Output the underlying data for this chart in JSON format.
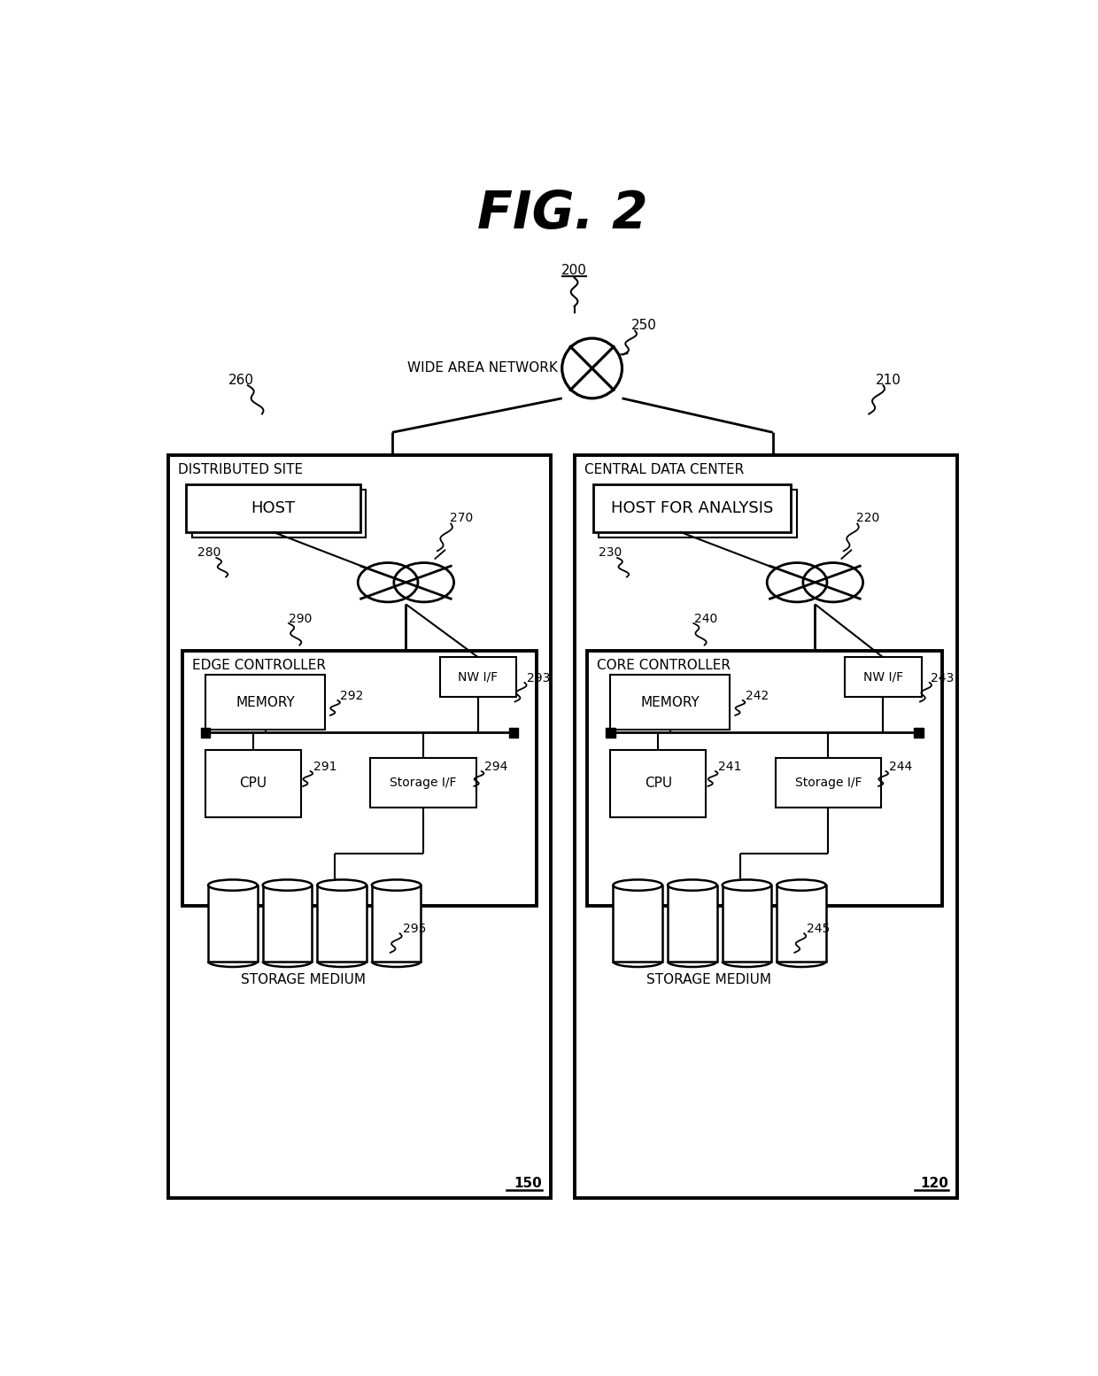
{
  "title": "FIG. 2",
  "bg_color": "#ffffff",
  "line_color": "#000000",
  "fig_width": 12.4,
  "fig_height": 15.54,
  "labels": {
    "fig_title": "FIG. 2",
    "ref_200": "200",
    "ref_250": "250",
    "ref_260": "260",
    "ref_210": "210",
    "ref_270": "270",
    "ref_220": "220",
    "ref_280": "280",
    "ref_290": "290",
    "ref_240": "240",
    "ref_230": "230",
    "ref_292": "292",
    "ref_293": "293",
    "ref_291": "291",
    "ref_294": "294",
    "ref_242": "242",
    "ref_243": "243",
    "ref_241": "241",
    "ref_244": "244",
    "ref_295": "295",
    "ref_245": "245",
    "ref_150": "150",
    "ref_120": "120",
    "wan_label": "WIDE AREA NETWORK",
    "dist_site": "DISTRIBUTED SITE",
    "cent_dc": "CENTRAL DATA CENTER",
    "host_left": "HOST",
    "host_right": "HOST FOR ANALYSIS",
    "edge_ctrl": "EDGE CONTROLLER",
    "core_ctrl": "CORE CONTROLLER",
    "memory_l": "MEMORY",
    "memory_r": "MEMORY",
    "cpu_l": "CPU",
    "cpu_r": "CPU",
    "nwif_l": "NW I/F",
    "nwif_r": "NW I/F",
    "storif_l": "Storage I/F",
    "storif_r": "Storage I/F",
    "storage_l": "STORAGE MEDIUM",
    "storage_r": "STORAGE MEDIUM"
  }
}
